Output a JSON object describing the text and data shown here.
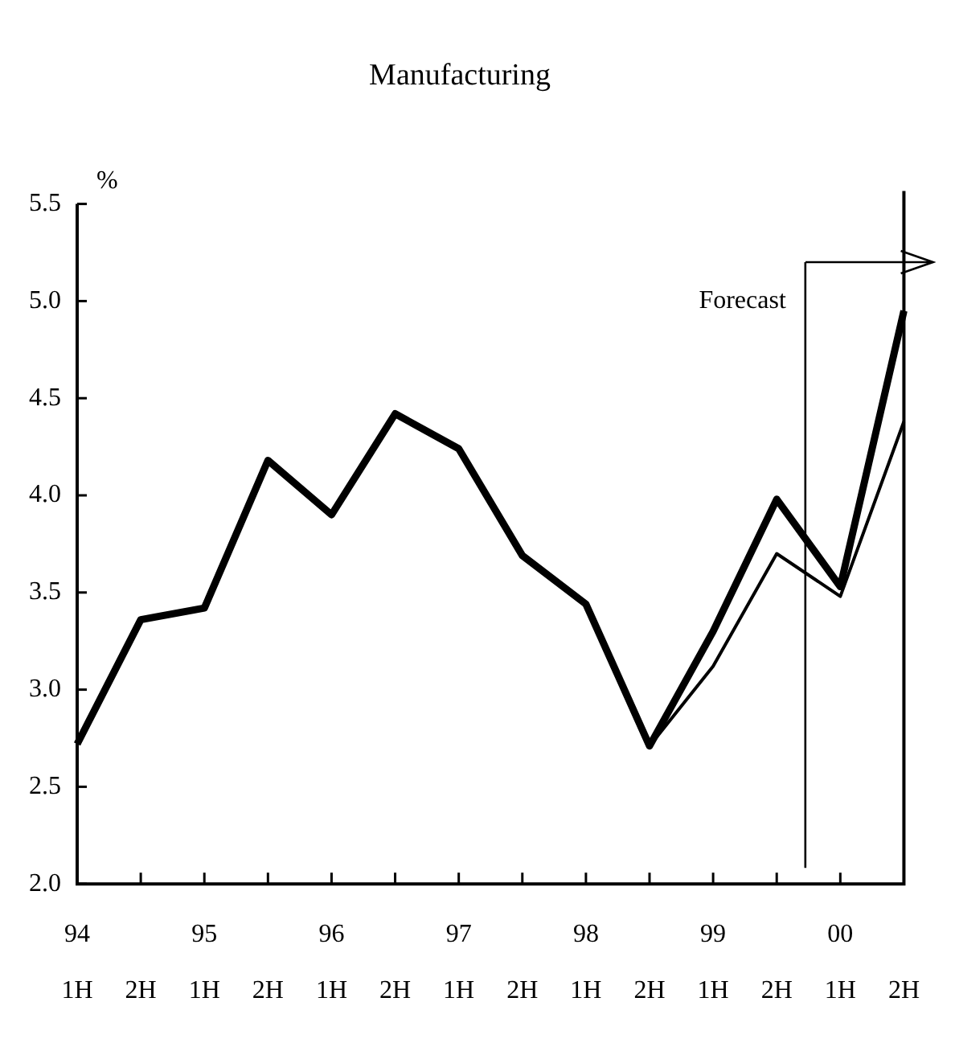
{
  "chart_data": {
    "type": "line",
    "title": "Manufacturing",
    "ylabel": "%",
    "categories": [
      "94\n1H",
      "2H",
      "95\n1H",
      "2H",
      "96\n1H",
      "2H",
      "97\n1H",
      "2H",
      "98\n1H",
      "2H",
      "99\n1H",
      "2H",
      "00\n1H",
      "2H"
    ],
    "series": [
      {
        "color": "#000000",
        "values": [
          null,
          null,
          null,
          null,
          null,
          null,
          null,
          null,
          null,
          2.71,
          3.12,
          3.7,
          3.48,
          4.38
        ]
      },
      {
        "color": "#000000",
        "values": [
          2.72,
          3.36,
          3.42,
          4.18,
          3.9,
          4.42,
          4.24,
          3.69,
          3.44,
          2.71,
          3.3,
          3.98,
          3.53,
          4.95
        ]
      }
    ],
    "ylim": [
      2.0,
      5.5
    ],
    "yticks": [
      {
        "value": 2,
        "label": "2.0"
      },
      {
        "value": 2.5,
        "label": "2.5"
      },
      {
        "value": 3,
        "label": "3.0"
      },
      {
        "value": 3.5,
        "label": "3.5"
      },
      {
        "value": 4,
        "label": "4.0"
      },
      {
        "value": 4.5,
        "label": "4.5"
      },
      {
        "value": 5,
        "label": "5.0"
      },
      {
        "value": 5.5,
        "label": "5.5"
      }
    ],
    "annotations": [
      "Forecast"
    ],
    "grid": false,
    "legend": false,
    "marker": "none",
    "line_style": "solid"
  }
}
